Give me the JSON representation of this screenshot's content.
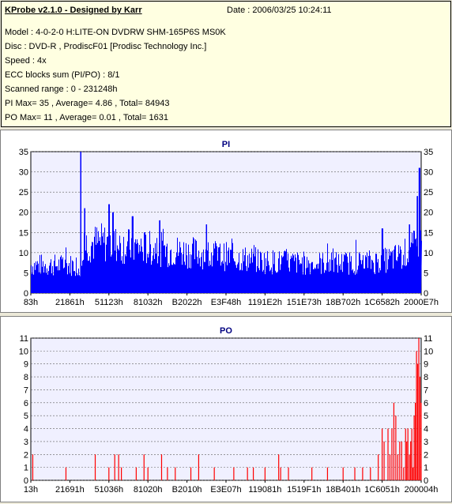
{
  "header": {
    "title": "KProbe v2.1.0 - Designed by Karr",
    "date": "Date : 2006/03/25 10:24:11",
    "lines": [
      "Model : 4-0-2-0 H:LITE-ON DVDRW SHM-165P6S MS0K",
      "Disc : DVD-R , ProdiscF01 [Prodisc Technology Inc.]",
      "Speed : 4x",
      "ECC blocks sum (PI/PO) : 8/1",
      "Scanned range : 0 - 231248h",
      "PI Max= 35 , Average= 4.86 , Total= 84943",
      "PO Max= 11 , Average= 0.01 , Total= 1631"
    ]
  },
  "colors": {
    "plot_bg": "#f0f0ff",
    "pi_series": "#0000ff",
    "po_series": "#ff0000",
    "title": "#000080"
  },
  "chart_data": [
    {
      "type": "bar",
      "title": "PI",
      "ylim": [
        0,
        35
      ],
      "yticks": [
        0,
        5,
        10,
        15,
        20,
        25,
        30,
        35
      ],
      "xticks": [
        "83h",
        "21861h",
        "51123h",
        "81032h",
        "B2022h",
        "E3F48h",
        "1191E2h",
        "151E73h",
        "18B702h",
        "1C6582h",
        "2000E7h"
      ],
      "max": 35,
      "average": 4.86,
      "profile": [
        {
          "x": 0.0,
          "y": 7.5
        },
        {
          "x": 0.12,
          "y": 7.5
        },
        {
          "x": 0.125,
          "y": 4.5
        },
        {
          "x": 0.13,
          "y": 13
        },
        {
          "x": 0.18,
          "y": 13.5
        },
        {
          "x": 0.25,
          "y": 12.5
        },
        {
          "x": 0.35,
          "y": 11.5
        },
        {
          "x": 0.45,
          "y": 10.5
        },
        {
          "x": 0.52,
          "y": 9.5
        },
        {
          "x": 0.6,
          "y": 8.5
        },
        {
          "x": 0.7,
          "y": 8
        },
        {
          "x": 0.8,
          "y": 8
        },
        {
          "x": 0.9,
          "y": 8.5
        },
        {
          "x": 0.95,
          "y": 10
        },
        {
          "x": 0.98,
          "y": 12
        },
        {
          "x": 1.0,
          "y": 14
        }
      ],
      "spikes": [
        {
          "x": 0.128,
          "y": 35
        },
        {
          "x": 0.138,
          "y": 21
        },
        {
          "x": 0.2,
          "y": 22
        },
        {
          "x": 0.21,
          "y": 20
        },
        {
          "x": 0.26,
          "y": 19
        },
        {
          "x": 0.33,
          "y": 18
        },
        {
          "x": 0.45,
          "y": 17
        },
        {
          "x": 0.9,
          "y": 16
        },
        {
          "x": 0.97,
          "y": 17
        },
        {
          "x": 0.99,
          "y": 24
        },
        {
          "x": 0.995,
          "y": 31
        }
      ]
    },
    {
      "type": "bar",
      "title": "PO",
      "ylim": [
        0,
        11
      ],
      "yticks": [
        0,
        1,
        2,
        3,
        4,
        5,
        6,
        7,
        8,
        9,
        10,
        11
      ],
      "xticks": [
        "13h",
        "21691h",
        "51036h",
        "81020h",
        "B2010h",
        "E3E07h",
        "119081h",
        "1519F1h",
        "18B401h",
        "1C6051h",
        "200004h"
      ],
      "max": 11,
      "average": 0.01,
      "bars": [
        {
          "x": 0.005,
          "y": 2
        },
        {
          "x": 0.09,
          "y": 1
        },
        {
          "x": 0.165,
          "y": 2
        },
        {
          "x": 0.2,
          "y": 1
        },
        {
          "x": 0.215,
          "y": 2
        },
        {
          "x": 0.225,
          "y": 2
        },
        {
          "x": 0.232,
          "y": 1
        },
        {
          "x": 0.27,
          "y": 1
        },
        {
          "x": 0.29,
          "y": 2
        },
        {
          "x": 0.3,
          "y": 1
        },
        {
          "x": 0.335,
          "y": 2
        },
        {
          "x": 0.35,
          "y": 1
        },
        {
          "x": 0.37,
          "y": 1
        },
        {
          "x": 0.41,
          "y": 1
        },
        {
          "x": 0.43,
          "y": 2
        },
        {
          "x": 0.47,
          "y": 1
        },
        {
          "x": 0.52,
          "y": 1
        },
        {
          "x": 0.555,
          "y": 1
        },
        {
          "x": 0.57,
          "y": 1
        },
        {
          "x": 0.6,
          "y": 1
        },
        {
          "x": 0.635,
          "y": 2
        },
        {
          "x": 0.64,
          "y": 1
        },
        {
          "x": 0.66,
          "y": 1
        },
        {
          "x": 0.72,
          "y": 1
        },
        {
          "x": 0.76,
          "y": 1
        },
        {
          "x": 0.8,
          "y": 1
        },
        {
          "x": 0.83,
          "y": 1
        },
        {
          "x": 0.85,
          "y": 1
        },
        {
          "x": 0.87,
          "y": 1
        },
        {
          "x": 0.89,
          "y": 2
        },
        {
          "x": 0.9,
          "y": 4
        },
        {
          "x": 0.905,
          "y": 3
        },
        {
          "x": 0.915,
          "y": 4
        },
        {
          "x": 0.92,
          "y": 2
        },
        {
          "x": 0.925,
          "y": 4
        },
        {
          "x": 0.93,
          "y": 6
        },
        {
          "x": 0.935,
          "y": 5
        },
        {
          "x": 0.94,
          "y": 2
        },
        {
          "x": 0.945,
          "y": 3
        },
        {
          "x": 0.95,
          "y": 3
        },
        {
          "x": 0.955,
          "y": 1
        },
        {
          "x": 0.96,
          "y": 4
        },
        {
          "x": 0.963,
          "y": 3
        },
        {
          "x": 0.966,
          "y": 4
        },
        {
          "x": 0.97,
          "y": 2
        },
        {
          "x": 0.973,
          "y": 3
        },
        {
          "x": 0.976,
          "y": 4
        },
        {
          "x": 0.979,
          "y": 1
        },
        {
          "x": 0.982,
          "y": 5
        },
        {
          "x": 0.985,
          "y": 6
        },
        {
          "x": 0.988,
          "y": 10
        },
        {
          "x": 0.991,
          "y": 9
        },
        {
          "x": 0.994,
          "y": 11
        },
        {
          "x": 0.997,
          "y": 8
        },
        {
          "x": 1.0,
          "y": 6
        }
      ]
    }
  ]
}
